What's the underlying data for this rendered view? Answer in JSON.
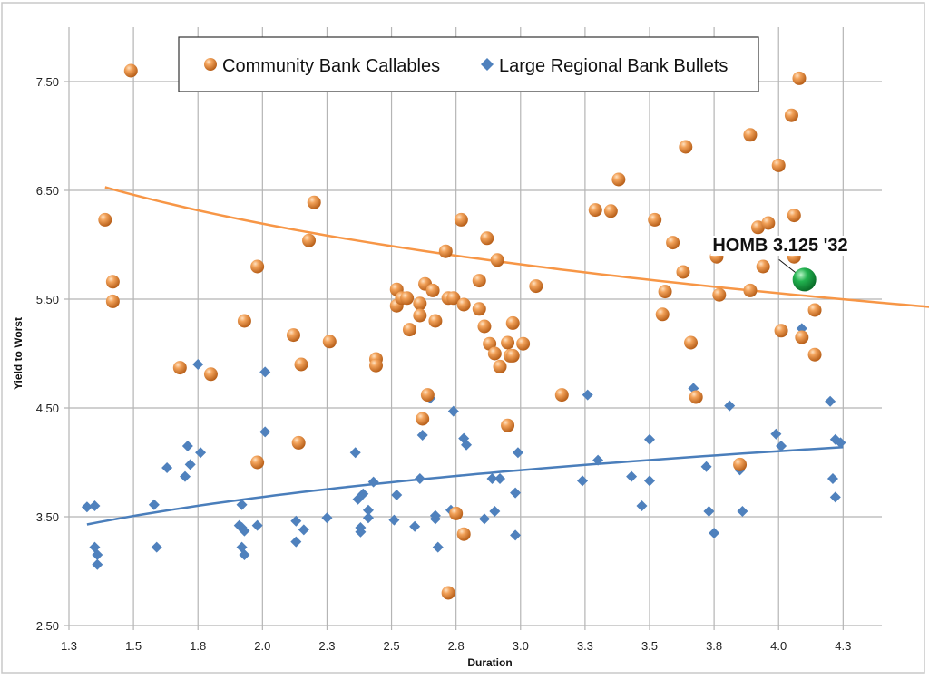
{
  "chart_data": {
    "type": "scatter",
    "title": "",
    "xlabel": "Duration",
    "ylabel": "Yield to Worst",
    "xlim": [
      1.25,
      4.4
    ],
    "ylim": [
      2.5,
      8.0
    ],
    "x_ticks": [
      1.25,
      1.5,
      1.75,
      2.0,
      2.25,
      2.5,
      2.75,
      3.0,
      3.25,
      3.5,
      3.75,
      4.0,
      4.25
    ],
    "x_tick_labels": [
      "1.3",
      "1.5",
      "1.8",
      "2.0",
      "2.3",
      "2.5",
      "2.8",
      "3.0",
      "3.3",
      "3.5",
      "3.8",
      "4.0",
      "4.3"
    ],
    "y_ticks": [
      2.5,
      3.5,
      4.5,
      5.5,
      6.5,
      7.5
    ],
    "y_tick_labels": [
      "2.50",
      "3.50",
      "4.50",
      "5.50",
      "6.50",
      "7.50"
    ],
    "grid": true,
    "legend_position": "top-center",
    "series": [
      {
        "name": "Community Bank Callables",
        "marker": "sphere",
        "color": "#E8883A",
        "trendline": {
          "type": "log",
          "a": 6.833,
          "b": -0.922,
          "x_range": [
            1.39,
            4.6
          ],
          "color": "#F79646"
        },
        "points": [
          [
            1.49,
            7.6
          ],
          [
            1.39,
            6.23
          ],
          [
            1.42,
            5.66
          ],
          [
            1.42,
            5.48
          ],
          [
            1.68,
            4.87
          ],
          [
            1.8,
            4.81
          ],
          [
            1.93,
            5.3
          ],
          [
            1.98,
            5.8
          ],
          [
            1.98,
            4.0
          ],
          [
            2.12,
            5.17
          ],
          [
            2.15,
            4.9
          ],
          [
            2.14,
            4.18
          ],
          [
            2.18,
            6.04
          ],
          [
            2.2,
            6.39
          ],
          [
            2.26,
            5.11
          ],
          [
            2.44,
            4.95
          ],
          [
            2.44,
            4.89
          ],
          [
            2.52,
            5.59
          ],
          [
            2.52,
            5.44
          ],
          [
            2.54,
            5.51
          ],
          [
            2.56,
            5.51
          ],
          [
            2.57,
            5.22
          ],
          [
            2.61,
            5.46
          ],
          [
            2.61,
            5.35
          ],
          [
            2.63,
            5.64
          ],
          [
            2.66,
            5.58
          ],
          [
            2.67,
            5.3
          ],
          [
            2.62,
            4.4
          ],
          [
            2.64,
            4.62
          ],
          [
            2.71,
            5.94
          ],
          [
            2.72,
            5.51
          ],
          [
            2.74,
            5.51
          ],
          [
            2.77,
            6.23
          ],
          [
            2.78,
            5.45
          ],
          [
            2.72,
            2.8
          ],
          [
            2.75,
            3.53
          ],
          [
            2.78,
            3.34
          ],
          [
            2.84,
            5.67
          ],
          [
            2.84,
            5.41
          ],
          [
            2.86,
            5.25
          ],
          [
            2.87,
            6.06
          ],
          [
            2.88,
            5.09
          ],
          [
            2.9,
            5.0
          ],
          [
            2.91,
            5.86
          ],
          [
            2.92,
            4.88
          ],
          [
            2.95,
            5.1
          ],
          [
            2.96,
            4.98
          ],
          [
            2.97,
            5.28
          ],
          [
            2.97,
            4.98
          ],
          [
            3.01,
            5.09
          ],
          [
            2.95,
            4.34
          ],
          [
            3.06,
            5.62
          ],
          [
            3.16,
            4.62
          ],
          [
            3.29,
            6.32
          ],
          [
            3.35,
            6.31
          ],
          [
            3.38,
            6.6
          ],
          [
            3.52,
            6.23
          ],
          [
            3.55,
            5.36
          ],
          [
            3.56,
            5.57
          ],
          [
            3.59,
            6.02
          ],
          [
            3.63,
            5.75
          ],
          [
            3.64,
            6.9
          ],
          [
            3.66,
            5.1
          ],
          [
            3.68,
            4.6
          ],
          [
            3.77,
            5.54
          ],
          [
            3.76,
            5.89
          ],
          [
            3.89,
            7.01
          ],
          [
            3.89,
            5.58
          ],
          [
            3.85,
            3.98
          ],
          [
            3.92,
            6.16
          ],
          [
            3.96,
            6.2
          ],
          [
            3.94,
            5.8
          ],
          [
            4.0,
            6.73
          ],
          [
            4.05,
            7.19
          ],
          [
            4.08,
            7.53
          ],
          [
            4.06,
            6.27
          ],
          [
            4.06,
            5.89
          ],
          [
            4.01,
            5.21
          ],
          [
            4.09,
            5.15
          ],
          [
            4.14,
            5.4
          ],
          [
            4.14,
            4.99
          ]
        ]
      },
      {
        "name": "Large Regional Bank Bullets",
        "marker": "diamond",
        "color": "#4F81BD",
        "trendline": {
          "type": "log",
          "a": 3.261,
          "b": 0.607,
          "x_range": [
            1.32,
            4.25
          ],
          "color": "#4A7EBB"
        },
        "points": [
          [
            1.32,
            3.59
          ],
          [
            1.35,
            3.6
          ],
          [
            1.35,
            3.22
          ],
          [
            1.36,
            3.15
          ],
          [
            1.36,
            3.06
          ],
          [
            1.58,
            3.61
          ],
          [
            1.59,
            3.22
          ],
          [
            1.63,
            3.95
          ],
          [
            1.7,
            3.87
          ],
          [
            1.71,
            4.15
          ],
          [
            1.72,
            3.98
          ],
          [
            1.76,
            4.09
          ],
          [
            1.75,
            4.9
          ],
          [
            2.01,
            4.83
          ],
          [
            2.01,
            4.28
          ],
          [
            1.92,
            3.61
          ],
          [
            1.91,
            3.42
          ],
          [
            1.92,
            3.4
          ],
          [
            1.93,
            3.37
          ],
          [
            1.92,
            3.22
          ],
          [
            1.93,
            3.15
          ],
          [
            1.98,
            3.42
          ],
          [
            2.13,
            3.46
          ],
          [
            2.16,
            3.38
          ],
          [
            2.13,
            3.27
          ],
          [
            2.25,
            3.49
          ],
          [
            2.36,
            4.09
          ],
          [
            2.37,
            3.66
          ],
          [
            2.39,
            3.71
          ],
          [
            2.43,
            3.82
          ],
          [
            2.41,
            3.56
          ],
          [
            2.41,
            3.49
          ],
          [
            2.38,
            3.4
          ],
          [
            2.38,
            3.36
          ],
          [
            2.51,
            3.47
          ],
          [
            2.52,
            3.7
          ],
          [
            2.59,
            3.41
          ],
          [
            2.61,
            3.85
          ],
          [
            2.62,
            4.25
          ],
          [
            2.65,
            4.59
          ],
          [
            2.67,
            3.51
          ],
          [
            2.67,
            3.48
          ],
          [
            2.68,
            3.22
          ],
          [
            2.73,
            3.56
          ],
          [
            2.74,
            4.47
          ],
          [
            2.78,
            4.22
          ],
          [
            2.79,
            4.16
          ],
          [
            2.89,
            3.85
          ],
          [
            2.92,
            3.85
          ],
          [
            2.86,
            3.48
          ],
          [
            2.9,
            3.55
          ],
          [
            2.98,
            3.72
          ],
          [
            2.98,
            3.33
          ],
          [
            2.99,
            4.09
          ],
          [
            3.24,
            3.83
          ],
          [
            3.26,
            4.62
          ],
          [
            3.3,
            4.02
          ],
          [
            3.43,
            3.87
          ],
          [
            3.47,
            3.6
          ],
          [
            3.5,
            4.21
          ],
          [
            3.5,
            3.83
          ],
          [
            3.67,
            4.68
          ],
          [
            3.72,
            3.96
          ],
          [
            3.73,
            3.55
          ],
          [
            3.75,
            3.35
          ],
          [
            3.81,
            4.52
          ],
          [
            3.85,
            3.93
          ],
          [
            3.86,
            3.55
          ],
          [
            3.99,
            4.26
          ],
          [
            4.01,
            4.15
          ],
          [
            4.2,
            4.56
          ],
          [
            4.22,
            4.21
          ],
          [
            4.24,
            4.18
          ],
          [
            4.21,
            3.85
          ],
          [
            4.22,
            3.68
          ],
          [
            3.56,
            5.58
          ],
          [
            4.09,
            5.23
          ]
        ]
      }
    ],
    "annotations": [
      {
        "label": "HOMB 3.125 '32",
        "x": 4.1,
        "y": 5.68,
        "marker": "large-sphere",
        "color": "#1DA64A"
      }
    ]
  }
}
